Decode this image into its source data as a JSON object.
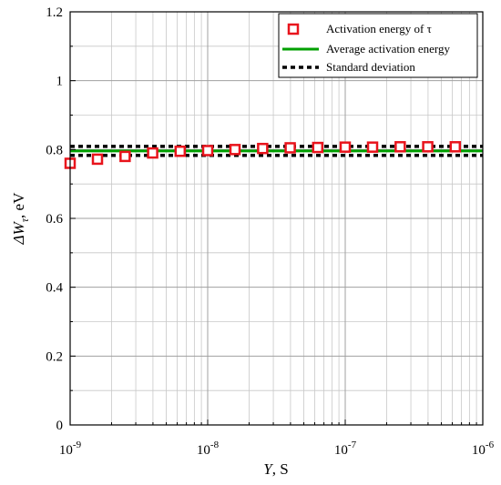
{
  "chart_data": {
    "type": "scatter",
    "x_scale": "log",
    "grid": true,
    "legend_placement": "top-right",
    "xlabel": {
      "italic": "Y",
      "rest": ", S"
    },
    "ylabel": {
      "prefix": "ΔW",
      "subscript": "τ",
      "suffix": ", eV"
    },
    "xlim": [
      1e-09,
      1e-06
    ],
    "ylim": [
      0,
      1.2
    ],
    "x_ticks": [
      {
        "value": 1e-09,
        "base": "10",
        "exp": "-9"
      },
      {
        "value": 1e-08,
        "base": "10",
        "exp": "-8"
      },
      {
        "value": 1e-07,
        "base": "10",
        "exp": "-7"
      },
      {
        "value": 1e-06,
        "base": "10",
        "exp": "-6"
      }
    ],
    "y_ticks": [
      {
        "value": 0,
        "label": "0"
      },
      {
        "value": 0.2,
        "label": "0.2"
      },
      {
        "value": 0.4,
        "label": "0.4"
      },
      {
        "value": 0.6,
        "label": "0.6"
      },
      {
        "value": 0.8,
        "label": "0.8"
      },
      {
        "value": 1.0,
        "label": "1"
      },
      {
        "value": 1.2,
        "label": "1.2"
      }
    ],
    "series": [
      {
        "name": "Activation energy of τ",
        "kind": "marker",
        "color": "#e8141c",
        "marker": "open-square",
        "x": [
          1e-09,
          1.58e-09,
          2.51e-09,
          3.98e-09,
          6.31e-09,
          1e-08,
          1.58e-08,
          2.51e-08,
          3.98e-08,
          6.31e-08,
          1e-07,
          1.58e-07,
          2.51e-07,
          3.98e-07,
          6.31e-07
        ],
        "y": [
          0.76,
          0.772,
          0.78,
          0.79,
          0.795,
          0.797,
          0.8,
          0.803,
          0.805,
          0.806,
          0.807,
          0.807,
          0.808,
          0.808,
          0.808
        ]
      },
      {
        "name": "Average activation energy",
        "kind": "line",
        "color": "#00a000",
        "style": "solid",
        "y": 0.796
      },
      {
        "name": "Standard deviation",
        "kind": "band",
        "color": "#000000",
        "style": "dashed",
        "y": [
          0.783,
          0.809
        ]
      }
    ]
  }
}
